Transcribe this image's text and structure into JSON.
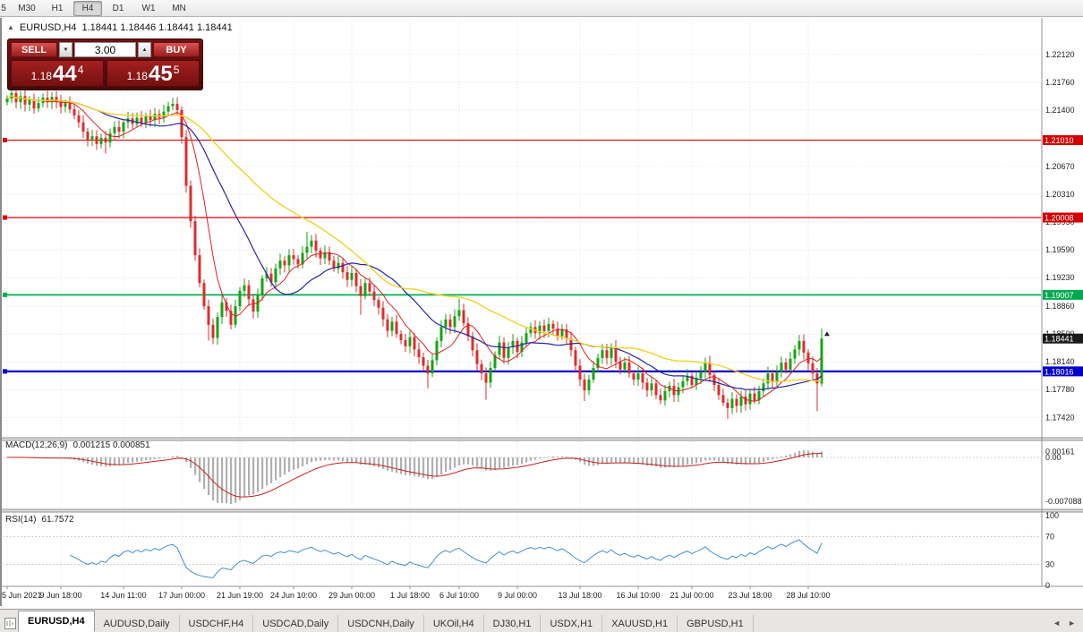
{
  "toolbar": {
    "timeframes": [
      {
        "label": "5",
        "active": false,
        "partial": true
      },
      {
        "label": "M30",
        "active": false
      },
      {
        "label": "H1",
        "active": false
      },
      {
        "label": "H4",
        "active": true
      },
      {
        "label": "D1",
        "active": false
      },
      {
        "label": "W1",
        "active": false
      },
      {
        "label": "MN",
        "active": false
      }
    ]
  },
  "chart": {
    "collapse_glyph": "▲",
    "title": "EURUSD,H4",
    "ohlc_text": "1.18441 1.18446 1.18441 1.18441"
  },
  "one_click": {
    "sell_label": "SELL",
    "buy_label": "BUY",
    "volume": "3.00",
    "spin_down_glyph": "▼",
    "spin_up_glyph": "▲",
    "bid": {
      "small": "1.18",
      "big": "44",
      "sup": "4"
    },
    "ask": {
      "small": "1.18",
      "big": "45",
      "sup": "5"
    }
  },
  "price_axis": {
    "gridline_labels": [
      "1.22120",
      "1.21760",
      "1.21400",
      "1.20670",
      "1.20310",
      "1.19950",
      "1.19590",
      "1.19230",
      "1.18860",
      "1.18500",
      "1.18140",
      "1.17780",
      "1.17420"
    ],
    "badges": [
      {
        "value": "1.21010",
        "color": "#d40000"
      },
      {
        "value": "1.20008",
        "color": "#d40000"
      },
      {
        "value": "1.19007",
        "color": "#00a94f"
      },
      {
        "value": "1.18016",
        "color": "#0000cc"
      },
      {
        "value": "1.18441",
        "color": "#1a1a1a"
      }
    ]
  },
  "hlines": [
    {
      "price": 1.2101,
      "color": "#e00000",
      "width": 1.2
    },
    {
      "price": 1.20008,
      "color": "#e00000",
      "width": 1.2
    },
    {
      "price": 1.19007,
      "color": "#00b050",
      "width": 1.8
    },
    {
      "price": 1.18016,
      "color": "#0000cc",
      "width": 2.2
    }
  ],
  "chart_data": {
    "type": "candlestick",
    "symbol": "EURUSD",
    "timeframe": "H4",
    "price_top": 1.225,
    "price_bottom": 1.1718,
    "last_price": 1.18441,
    "closes": [
      1.2155,
      1.2162,
      1.215,
      1.2158,
      1.2147,
      1.2153,
      1.2142,
      1.2149,
      1.2156,
      1.215,
      1.2157,
      1.2151,
      1.2144,
      1.2149,
      1.2141,
      1.2133,
      1.2124,
      1.2112,
      1.2102,
      1.2106,
      1.2096,
      1.2104,
      1.2098,
      1.211,
      1.2118,
      1.2112,
      1.2124,
      1.2129,
      1.2122,
      1.213,
      1.2124,
      1.2132,
      1.2127,
      1.2135,
      1.213,
      1.2138,
      1.2145,
      1.2148,
      1.214,
      1.2105,
      1.2042,
      1.1996,
      1.1952,
      1.1916,
      1.1886,
      1.1862,
      1.1845,
      1.1872,
      1.1891,
      1.188,
      1.1862,
      1.1886,
      1.1906,
      1.1913,
      1.1895,
      1.1879,
      1.19,
      1.1922,
      1.1928,
      1.1917,
      1.1935,
      1.1945,
      1.1939,
      1.1952,
      1.1947,
      1.194,
      1.1955,
      1.1963,
      1.1971,
      1.1958,
      1.1948,
      1.1956,
      1.1945,
      1.1935,
      1.1942,
      1.193,
      1.192,
      1.1929,
      1.1912,
      1.1899,
      1.1916,
      1.1905,
      1.1894,
      1.1884,
      1.1869,
      1.1854,
      1.1866,
      1.185,
      1.1842,
      1.1834,
      1.1846,
      1.183,
      1.182,
      1.1809,
      1.1799,
      1.1816,
      1.1841,
      1.1859,
      1.1869,
      1.1859,
      1.1873,
      1.1881,
      1.1864,
      1.1847,
      1.1829,
      1.1811,
      1.1799,
      1.1787,
      1.1806,
      1.1823,
      1.1839,
      1.1819,
      1.1833,
      1.1841,
      1.1827,
      1.1839,
      1.1851,
      1.1859,
      1.1851,
      1.1861,
      1.1854,
      1.1863,
      1.1857,
      1.1847,
      1.1856,
      1.1844,
      1.1829,
      1.1809,
      1.1791,
      1.1777,
      1.1791,
      1.1806,
      1.1819,
      1.1829,
      1.1819,
      1.1833,
      1.1814,
      1.1804,
      1.1813,
      1.1799,
      1.1791,
      1.1799,
      1.1787,
      1.1777,
      1.1786,
      1.1771,
      1.1764,
      1.1776,
      1.1783,
      1.1771,
      1.1781,
      1.1789,
      1.1796,
      1.1784,
      1.1793,
      1.1801,
      1.1813,
      1.1797,
      1.1784,
      1.1771,
      1.1761,
      1.1754,
      1.1766,
      1.1757,
      1.1769,
      1.1759,
      1.1773,
      1.1764,
      1.1776,
      1.1786,
      1.1799,
      1.1789,
      1.1801,
      1.1813,
      1.1804,
      1.1818,
      1.183,
      1.1841,
      1.1826,
      1.1812,
      1.1799,
      1.1786,
      1.18441
    ],
    "open_first": 1.215,
    "wick_overrides": {
      "22": {
        "low": 0.001
      },
      "45": {
        "low": 0.0014
      },
      "67": {
        "high": 0.0013
      },
      "79": {
        "low": 0.0018
      },
      "94": {
        "low": 0.0014
      },
      "101": {
        "high": 0.001
      },
      "107": {
        "low": 0.0014
      },
      "129": {
        "low": 0.0006
      },
      "161": {
        "low": 0.0008
      },
      "181": {
        "low": 0.003
      },
      "182": {
        "high": 0.0006
      }
    },
    "moving_averages": [
      {
        "name": "fast-ma",
        "period": 8,
        "color": "#e02020",
        "width": 1
      },
      {
        "name": "mid-ma",
        "period": 21,
        "color": "#26269e",
        "width": 1.2
      },
      {
        "name": "slow-ma",
        "period": 45,
        "color": "#f2d226",
        "width": 1.4
      }
    ],
    "time_axis": [
      {
        "label": "5 Jun 2021",
        "bar": 0
      },
      {
        "label": "9 Jun 18:00",
        "bar": 12
      },
      {
        "label": "14 Jun 11:00",
        "bar": 26
      },
      {
        "label": "17 Jun 00:00",
        "bar": 39
      },
      {
        "label": "21 Jun 19:00",
        "bar": 52
      },
      {
        "label": "24 Jun 10:00",
        "bar": 64
      },
      {
        "label": "29 Jun 00:00",
        "bar": 77
      },
      {
        "label": "1 Jul 18:00",
        "bar": 90
      },
      {
        "label": "6 Jul 10:00",
        "bar": 101
      },
      {
        "label": "9 Jul 00:00",
        "bar": 114
      },
      {
        "label": "13 Jul 18:00",
        "bar": 128
      },
      {
        "label": "16 Jul 10:00",
        "bar": 141
      },
      {
        "label": "21 Jul 00:00",
        "bar": 153
      },
      {
        "label": "23 Jul 18:00",
        "bar": 166
      },
      {
        "label": "28 Jul 10:00",
        "bar": 179
      }
    ],
    "macd": {
      "title": "MACD(12,26,9)",
      "values_text": "0.001215 0.000851",
      "fast": 12,
      "slow": 26,
      "signal": 9,
      "axis_labels": [
        "0.00161",
        "0.00",
        "-0.007088"
      ],
      "histogram_color": "#b0b0b0",
      "signal_color": "#cc2020"
    },
    "rsi": {
      "title": "RSI(14)",
      "value_text": "61.7572",
      "period": 14,
      "axis_labels": [
        "100",
        "70",
        "30",
        "0"
      ],
      "levels": [
        70,
        30
      ],
      "line_color": "#3f8fd2"
    },
    "candle_up_color": "#15a315",
    "candle_down_color": "#dd2c2c"
  },
  "tabs": {
    "items": [
      {
        "label": "EURUSD,H4",
        "active": true
      },
      {
        "label": "AUDUSD,Daily",
        "active": false
      },
      {
        "label": "USDCHF,H4",
        "active": false
      },
      {
        "label": "USDCAD,Daily",
        "active": false
      },
      {
        "label": "USDCNH,Daily",
        "active": false
      },
      {
        "label": "UKOil,H4",
        "active": false
      },
      {
        "label": "DJ30,H1",
        "active": false
      },
      {
        "label": "USDX,H1",
        "active": false
      },
      {
        "label": "XAUUSD,H1",
        "active": false
      },
      {
        "label": "GBPUSD,H1",
        "active": false
      }
    ],
    "nav_left_glyph": "◄",
    "nav_right_glyph": "►"
  }
}
